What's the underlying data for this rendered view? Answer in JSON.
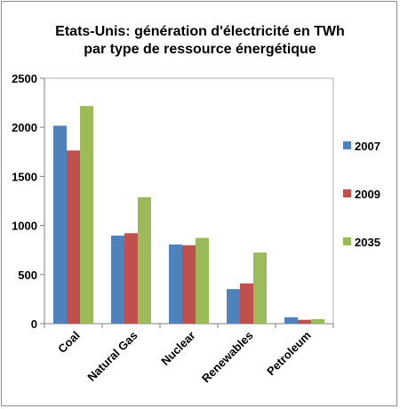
{
  "chart_data": {
    "type": "bar",
    "title_line1": "Etats-Unis: génération d'électricité en TWh",
    "title_line2": "par type de ressource énergétique",
    "categories": [
      "Coal",
      "Natural Gas",
      "Nuclear",
      "Renewables",
      "Petroleum"
    ],
    "series": [
      {
        "name": "2007",
        "color": "#4f81bd",
        "values": [
          2016,
          897,
          806,
          352,
          65
        ]
      },
      {
        "name": "2009",
        "color": "#c0504d",
        "values": [
          1764,
          921,
          799,
          410,
          39
        ]
      },
      {
        "name": "2035",
        "color": "#9bbb59",
        "values": [
          2217,
          1288,
          874,
          724,
          46
        ]
      }
    ],
    "ylim": [
      0,
      2500
    ],
    "yticks": [
      0,
      500,
      1000,
      1500,
      2000,
      2500
    ],
    "grid": false,
    "legend": "right",
    "plot_background": "#ffffff"
  }
}
